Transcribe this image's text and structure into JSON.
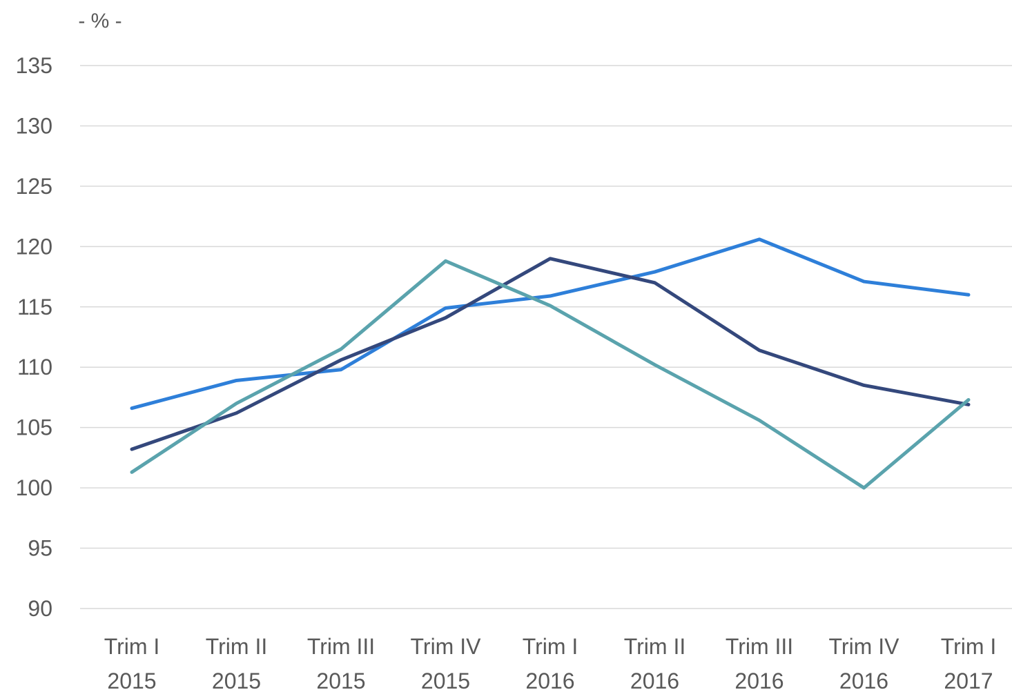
{
  "chart_data": {
    "type": "line",
    "y_unit_label": "- % -",
    "categories": [
      [
        "Trim I",
        "2015"
      ],
      [
        "Trim II",
        "2015"
      ],
      [
        "Trim III",
        "2015"
      ],
      [
        "Trim IV",
        "2015"
      ],
      [
        "Trim I",
        "2016"
      ],
      [
        "Trim II",
        "2016"
      ],
      [
        "Trim III",
        "2016"
      ],
      [
        "Trim IV",
        "2016"
      ],
      [
        "Trim I",
        "2017"
      ]
    ],
    "ylim": [
      90,
      135
    ],
    "yticks": [
      90,
      95,
      100,
      105,
      110,
      115,
      120,
      125,
      130,
      135
    ],
    "grid": true,
    "legend": "none",
    "series": [
      {
        "color": "#2e7fd9",
        "values": [
          106.6,
          108.9,
          109.8,
          114.9,
          115.9,
          117.9,
          120.6,
          117.1,
          116.0
        ]
      },
      {
        "color": "#34487c",
        "values": [
          103.2,
          106.2,
          110.6,
          114.1,
          119.0,
          117.0,
          111.4,
          108.5,
          106.9
        ]
      },
      {
        "color": "#5aa3ad",
        "values": [
          101.3,
          107.0,
          111.5,
          118.8,
          115.1,
          110.2,
          105.6,
          100.0,
          107.3
        ]
      }
    ]
  }
}
